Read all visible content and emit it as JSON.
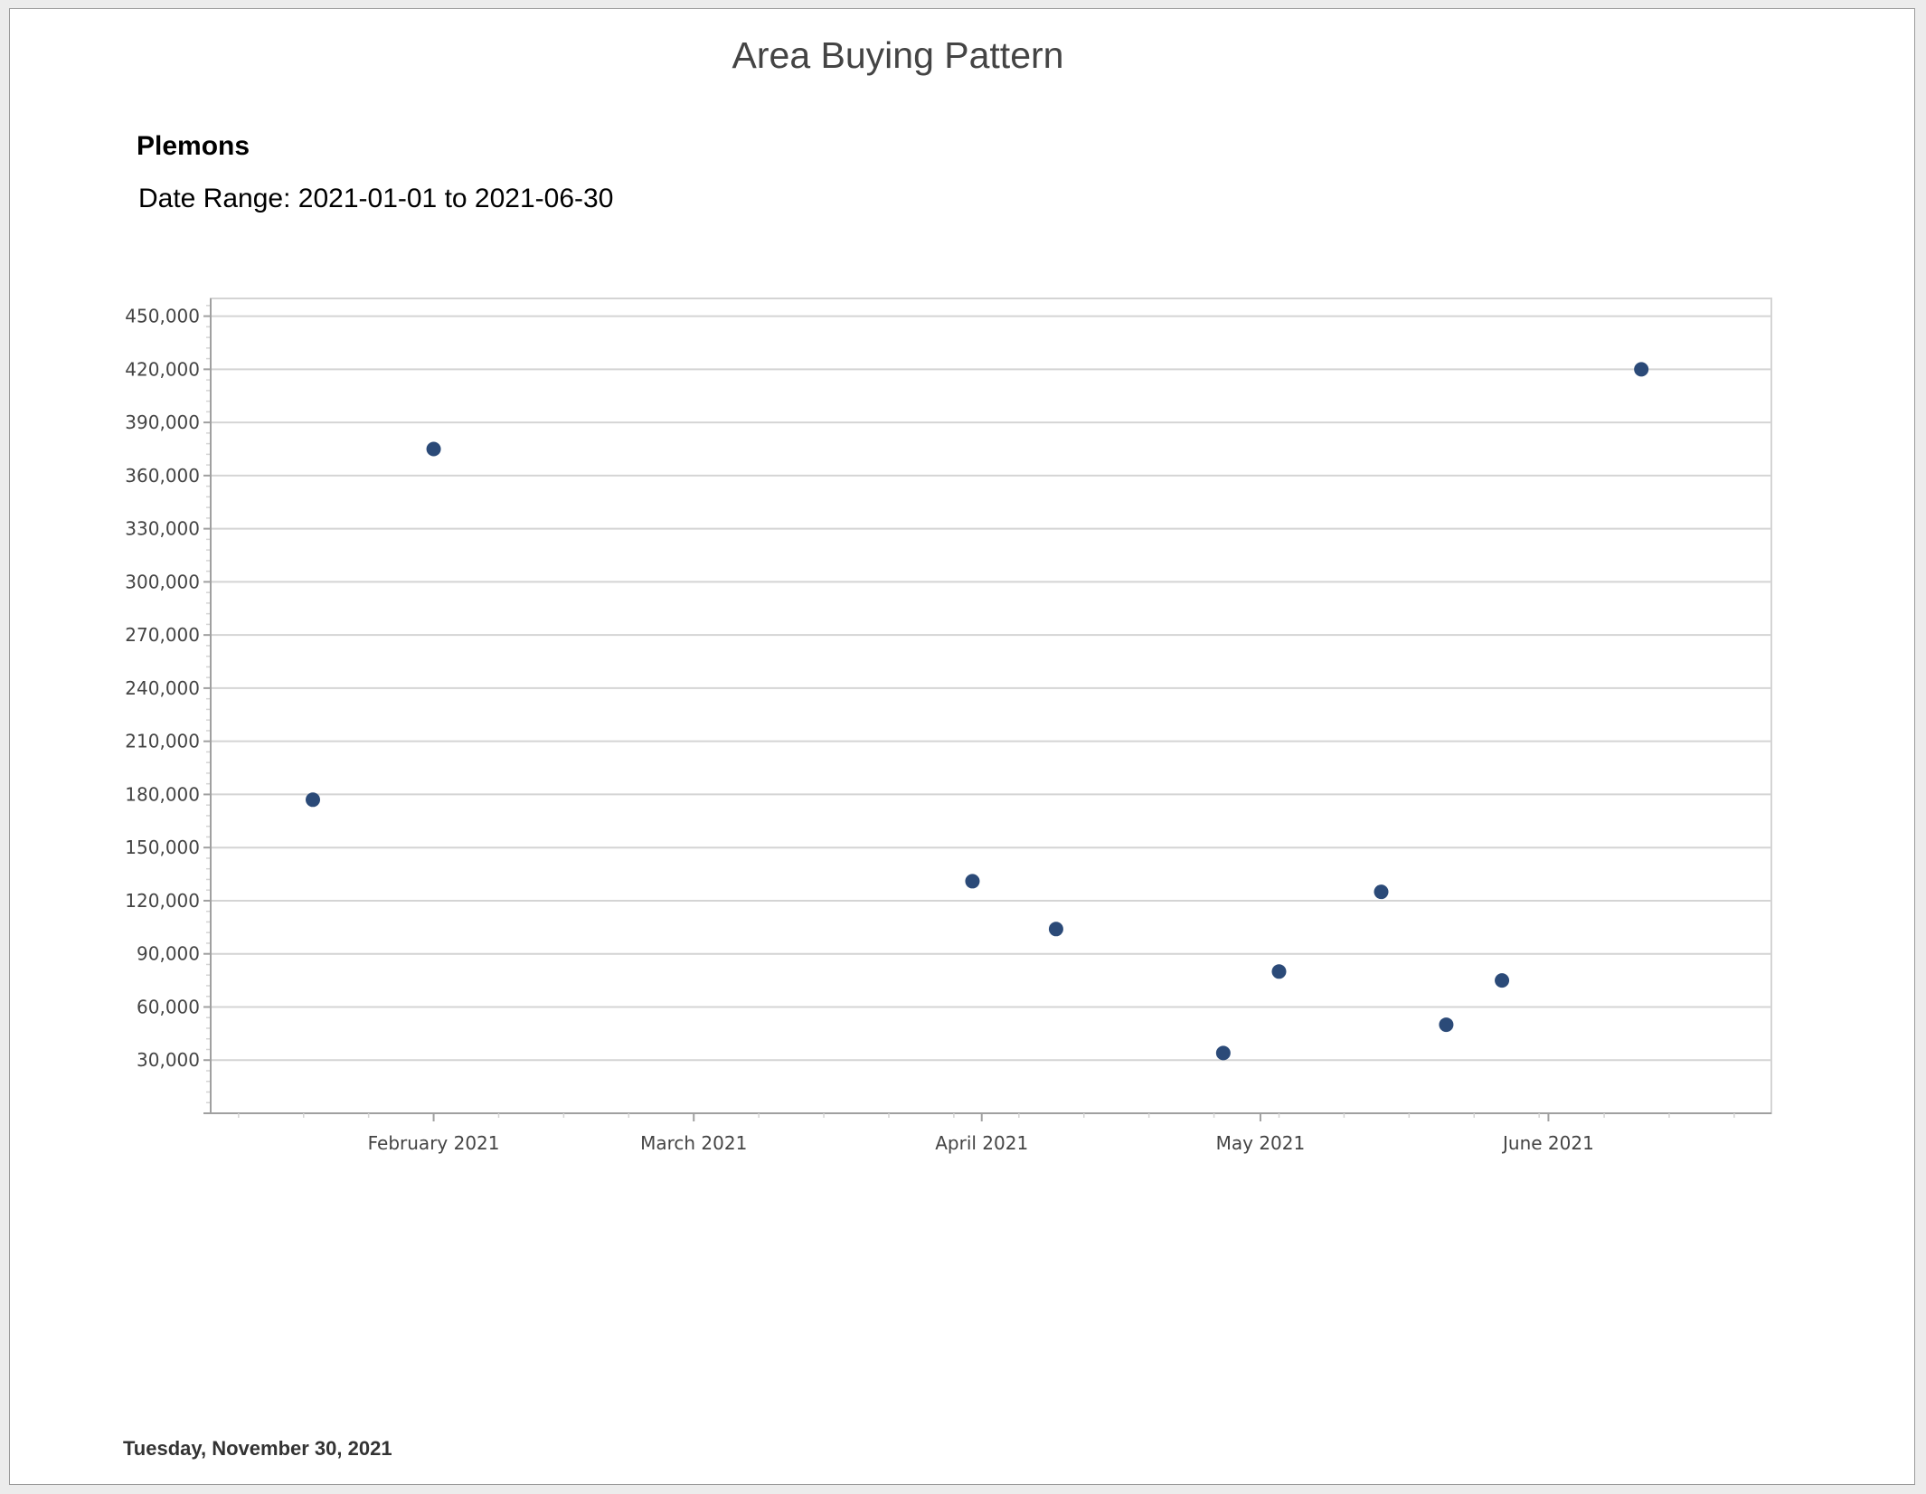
{
  "report": {
    "title": "Area Buying Pattern",
    "area_name": "Plemons",
    "date_range": "Date Range: 2021-01-01 to 2021-06-30",
    "footer_date": "Tuesday, November 30, 2021"
  },
  "colors": {
    "marker": "#2b4a78",
    "gridline": "#d4d4d4",
    "axis": "#a0a0a0"
  },
  "chart_data": {
    "type": "scatter",
    "title": "",
    "xlabel": "",
    "ylabel": "",
    "grid": true,
    "legend": "none",
    "x_range": [
      "2021-01-08",
      "2021-06-25"
    ],
    "ylim": [
      0,
      460000
    ],
    "y_ticks": [
      30000,
      60000,
      90000,
      120000,
      150000,
      180000,
      210000,
      240000,
      270000,
      300000,
      330000,
      360000,
      390000,
      420000,
      450000
    ],
    "y_tick_labels": [
      "30,000",
      "60,000",
      "90,000",
      "120,000",
      "150,000",
      "180,000",
      "210,000",
      "240,000",
      "270,000",
      "300,000",
      "330,000",
      "360,000",
      "390,000",
      "420,000",
      "450,000"
    ],
    "x_ticks": [
      "2021-02-01",
      "2021-03-01",
      "2021-04-01",
      "2021-05-01",
      "2021-06-01"
    ],
    "x_tick_labels": [
      "February 2021",
      "March 2021",
      "April 2021",
      "May 2021",
      "June 2021"
    ],
    "points": [
      {
        "x": "2021-01-19",
        "y": 177000
      },
      {
        "x": "2021-02-01",
        "y": 375000
      },
      {
        "x": "2021-03-31",
        "y": 131000
      },
      {
        "x": "2021-04-09",
        "y": 104000
      },
      {
        "x": "2021-04-27",
        "y": 34000
      },
      {
        "x": "2021-05-03",
        "y": 80000
      },
      {
        "x": "2021-05-14",
        "y": 125000
      },
      {
        "x": "2021-05-21",
        "y": 50000
      },
      {
        "x": "2021-05-27",
        "y": 75000
      },
      {
        "x": "2021-06-11",
        "y": 420000
      }
    ]
  }
}
